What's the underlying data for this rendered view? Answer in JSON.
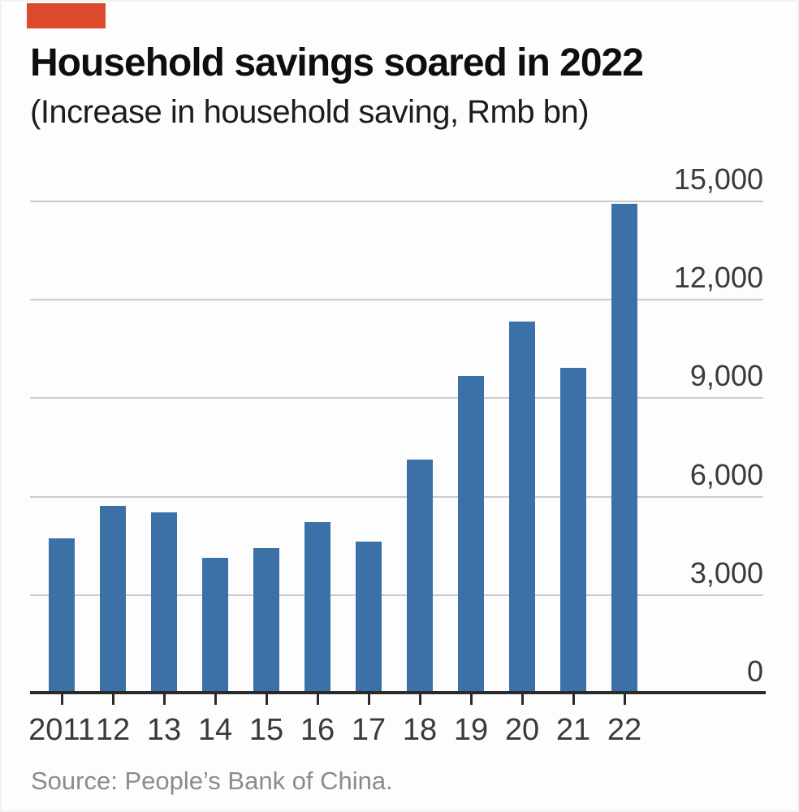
{
  "header": {
    "title": "Household savings soared in 2022",
    "subtitle": "(Increase in household saving, Rmb bn)"
  },
  "footer": {
    "source": "Source: People’s Bank of China."
  },
  "chart_data": {
    "type": "bar",
    "title": "Household savings soared in 2022",
    "subtitle": "(Increase in household saving, Rmb bn)",
    "ylabel": "Rmb bn",
    "categories": [
      "2011",
      "12",
      "13",
      "14",
      "15",
      "16",
      "17",
      "18",
      "19",
      "20",
      "21",
      "22"
    ],
    "values": [
      4700,
      5700,
      5500,
      4100,
      4400,
      5200,
      4600,
      7100,
      9650,
      11300,
      9900,
      14900
    ],
    "ylim": [
      0,
      15000
    ],
    "yticks": [
      0,
      3000,
      6000,
      9000,
      12000,
      15000
    ],
    "ytick_labels": [
      "0",
      "3,000",
      "6,000",
      "9,000",
      "12,000",
      "15,000"
    ],
    "grid": "horizontal",
    "legend": "none",
    "source": "Source: People’s Bank of China."
  },
  "colors": {
    "accent_red": "#db4a2c",
    "bar_blue": "#3b71a6",
    "gridline": "#c9cccd",
    "axis": "#2a2a2a",
    "title_text": "#0e0e0e",
    "muted_text": "#8b8b8b"
  }
}
